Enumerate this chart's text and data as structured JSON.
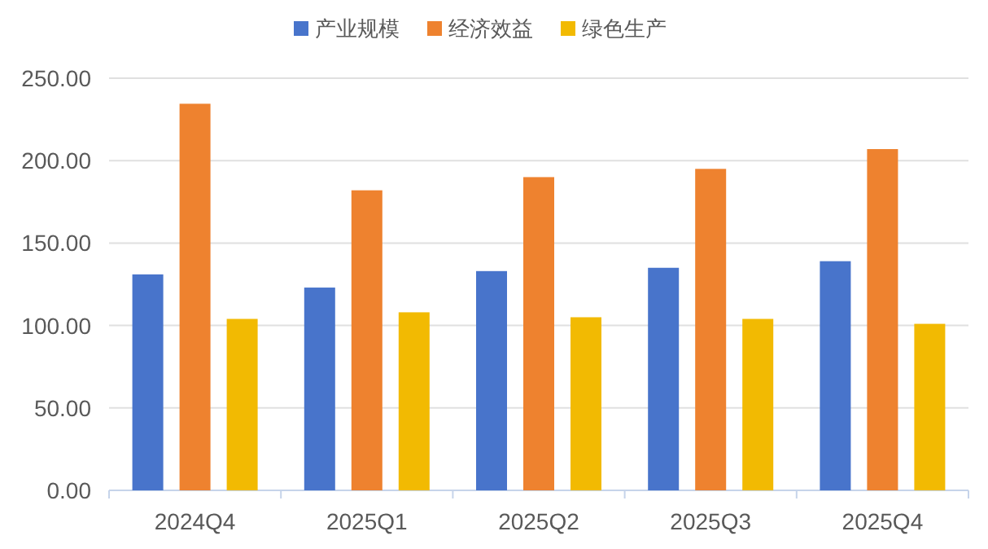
{
  "chart_data": {
    "type": "bar",
    "categories": [
      "2024Q4",
      "2025Q1",
      "2025Q2",
      "2025Q3",
      "2025Q4"
    ],
    "series": [
      {
        "name": "产业规模",
        "color": "#4874cb",
        "values": [
          131,
          123,
          133,
          135,
          139
        ]
      },
      {
        "name": "经济效益",
        "color": "#ee822f",
        "values": [
          234.5,
          182,
          190,
          195,
          207
        ]
      },
      {
        "name": "绿色生产",
        "color": "#f2ba02",
        "values": [
          104,
          108,
          105,
          104,
          101
        ]
      }
    ],
    "ylim": [
      0,
      250
    ],
    "yticks": [
      {
        "value": 0,
        "label": "0.00"
      },
      {
        "value": 50,
        "label": "50.00"
      },
      {
        "value": 100,
        "label": "100.00"
      },
      {
        "value": 150,
        "label": "150.00"
      },
      {
        "value": 200,
        "label": "200.00"
      },
      {
        "value": 250,
        "label": "250.00"
      }
    ],
    "grid": "y",
    "legend": "top"
  }
}
